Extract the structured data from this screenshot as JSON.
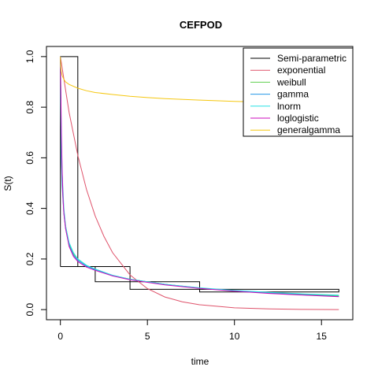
{
  "chart_data": {
    "type": "line",
    "title": "CEFPOD",
    "xlabel": "time",
    "ylabel": "S(t)",
    "xlim": [
      -0.8,
      16.8
    ],
    "ylim": [
      -0.04,
      1.04
    ],
    "x_ticks": [
      0,
      5,
      10,
      15
    ],
    "x_tick_labels": [
      "0",
      "5",
      "10",
      "15"
    ],
    "y_ticks": [
      0.0,
      0.2,
      0.4,
      0.6,
      0.8,
      1.0
    ],
    "y_tick_labels": [
      "0.0",
      "0.2",
      "0.4",
      "0.6",
      "0.8",
      "1.0"
    ],
    "grid": false,
    "legend_position": "top-right",
    "series": [
      {
        "name": "Semi-parametric",
        "color": "#000000",
        "step": true,
        "x": [
          0,
          1,
          2,
          4,
          8,
          16
        ],
        "values": [
          1.0,
          0.17,
          0.11,
          0.08,
          0.07,
          0.07
        ],
        "points": [
          [
            0,
            0.17
          ],
          [
            0,
            1.0
          ],
          [
            1,
            1.0
          ],
          [
            1,
            0.17
          ],
          [
            0,
            0.17
          ],
          [
            1,
            0.17
          ],
          [
            4,
            0.17
          ],
          [
            4,
            0.11
          ],
          [
            2,
            0.11
          ],
          [
            2,
            0.17
          ],
          [
            2,
            0.11
          ],
          [
            8,
            0.11
          ],
          [
            8,
            0.08
          ],
          [
            4,
            0.08
          ],
          [
            4,
            0.11
          ],
          [
            4,
            0.08
          ],
          [
            16,
            0.08
          ],
          [
            16,
            0.07
          ],
          [
            8,
            0.07
          ],
          [
            8,
            0.08
          ],
          [
            8,
            0.07
          ],
          [
            16,
            0.07
          ]
        ]
      },
      {
        "name": "exponential",
        "color": "#DF536B",
        "x": [
          0,
          0.5,
          1,
          1.5,
          2,
          2.5,
          3,
          4,
          5,
          6,
          7,
          8,
          10,
          12,
          14,
          16
        ],
        "values": [
          1.0,
          0.78,
          0.61,
          0.475,
          0.37,
          0.29,
          0.225,
          0.137,
          0.083,
          0.05,
          0.031,
          0.019,
          0.0069,
          0.0025,
          0.0009,
          0.0003
        ]
      },
      {
        "name": "weibull",
        "color": "#61D04F",
        "x": [
          0,
          0.05,
          0.1,
          0.2,
          0.3,
          0.5,
          0.75,
          1,
          1.5,
          2,
          3,
          4,
          6,
          8,
          10,
          12,
          14,
          16
        ],
        "values": [
          1.0,
          0.62,
          0.51,
          0.39,
          0.33,
          0.26,
          0.22,
          0.2,
          0.175,
          0.16,
          0.135,
          0.12,
          0.1,
          0.085,
          0.075,
          0.066,
          0.06,
          0.055
        ]
      },
      {
        "name": "gamma",
        "color": "#2297E6",
        "x": [
          0,
          0.05,
          0.1,
          0.2,
          0.3,
          0.5,
          0.75,
          1,
          1.5,
          2,
          3,
          4,
          6,
          8,
          10,
          12,
          14,
          16
        ],
        "values": [
          1.0,
          0.6,
          0.49,
          0.38,
          0.32,
          0.255,
          0.215,
          0.195,
          0.172,
          0.158,
          0.135,
          0.12,
          0.1,
          0.085,
          0.074,
          0.065,
          0.058,
          0.052
        ]
      },
      {
        "name": "lnorm",
        "color": "#28E2E5",
        "x": [
          0,
          0.05,
          0.1,
          0.2,
          0.3,
          0.5,
          0.75,
          1,
          1.5,
          2,
          3,
          4,
          6,
          8,
          10,
          12,
          14,
          16
        ],
        "values": [
          1.0,
          0.7,
          0.54,
          0.4,
          0.33,
          0.265,
          0.225,
          0.2,
          0.175,
          0.16,
          0.136,
          0.12,
          0.1,
          0.086,
          0.076,
          0.068,
          0.062,
          0.057
        ]
      },
      {
        "name": "loglogistic",
        "color": "#CD0BBC",
        "x": [
          0,
          0.03,
          0.06,
          0.1,
          0.15,
          0.2,
          0.3,
          0.5,
          0.75,
          1,
          1.5,
          2,
          3,
          4,
          6,
          8,
          10,
          12,
          14,
          16
        ],
        "values": [
          1.0,
          0.85,
          0.7,
          0.55,
          0.44,
          0.38,
          0.32,
          0.25,
          0.21,
          0.19,
          0.168,
          0.155,
          0.133,
          0.118,
          0.098,
          0.084,
          0.073,
          0.064,
          0.057,
          0.051
        ]
      },
      {
        "name": "generalgamma",
        "color": "#F5C710",
        "x": [
          0,
          0.02,
          0.05,
          0.1,
          0.2,
          0.3,
          0.5,
          1,
          1.5,
          2,
          3,
          4,
          5,
          6,
          8,
          10,
          12,
          14,
          16
        ],
        "values": [
          1.0,
          0.96,
          0.94,
          0.925,
          0.91,
          0.9,
          0.89,
          0.875,
          0.865,
          0.858,
          0.85,
          0.843,
          0.838,
          0.834,
          0.828,
          0.823,
          0.82,
          0.817,
          0.815
        ]
      }
    ]
  }
}
